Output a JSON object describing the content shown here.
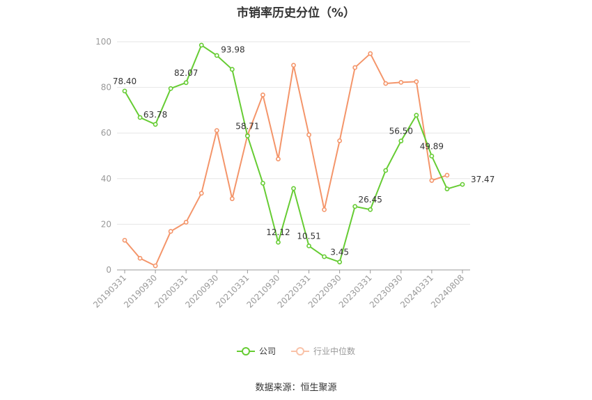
{
  "colors": {
    "company": "#66cc33",
    "industry": "#f4956a",
    "axis": "#999999",
    "grid": "#e6e6e6",
    "label": "#333333"
  },
  "chart_data": {
    "type": "line",
    "title": "市销率历史分位（%）",
    "ylim": [
      0,
      100
    ],
    "yticks": [
      "0",
      "20",
      "40",
      "60",
      "80",
      "100"
    ],
    "x": [
      "20190331",
      "20190630",
      "20190930",
      "20191231",
      "20200331",
      "20200630",
      "20200930",
      "20201231",
      "20210331",
      "20210630",
      "20210930",
      "20211231",
      "20220331",
      "20220630",
      "20220930",
      "20221231",
      "20230331",
      "20230630",
      "20230930",
      "20231231",
      "20240331",
      "20240630",
      "20240808"
    ],
    "xtick_labels": [
      "20190331",
      "20190930",
      "20200331",
      "20200930",
      "20210331",
      "20210930",
      "20220331",
      "20220930",
      "20230331",
      "20230930",
      "20240331",
      "20240808"
    ],
    "series": [
      {
        "name": "公司",
        "values": [
          78.4,
          66.8,
          63.78,
          79.5,
          82.07,
          98.5,
          93.98,
          87.9,
          58.71,
          38.0,
          12.12,
          35.7,
          10.51,
          5.8,
          3.45,
          27.8,
          26.45,
          43.6,
          56.5,
          67.8,
          49.89,
          35.5,
          37.47
        ]
      },
      {
        "name": "行业中位数",
        "values": [
          13.0,
          5.1,
          1.8,
          16.9,
          20.9,
          33.6,
          61.1,
          31.2,
          59.0,
          76.7,
          48.6,
          89.7,
          59.2,
          26.4,
          56.6,
          88.7,
          94.8,
          81.7,
          82.2,
          82.5,
          39.2,
          41.5,
          null
        ]
      }
    ],
    "labels": [
      {
        "index": 0,
        "text": "78.40"
      },
      {
        "index": 2,
        "text": "63.78"
      },
      {
        "index": 4,
        "text": "82.07"
      },
      {
        "index": 6,
        "text": "93.98"
      },
      {
        "index": 8,
        "text": "58.71"
      },
      {
        "index": 10,
        "text": "12.12"
      },
      {
        "index": 12,
        "text": "10.51"
      },
      {
        "index": 14,
        "text": "3.45"
      },
      {
        "index": 16,
        "text": "26.45"
      },
      {
        "index": 18,
        "text": "56.50"
      },
      {
        "index": 20,
        "text": "49.89"
      },
      {
        "index": 22,
        "text": "37.47"
      }
    ],
    "legend_position": "bottom-center",
    "grid": true
  },
  "legend": {
    "company": "公司",
    "industry": "行业中位数"
  },
  "source": "数据来源：恒生聚源"
}
